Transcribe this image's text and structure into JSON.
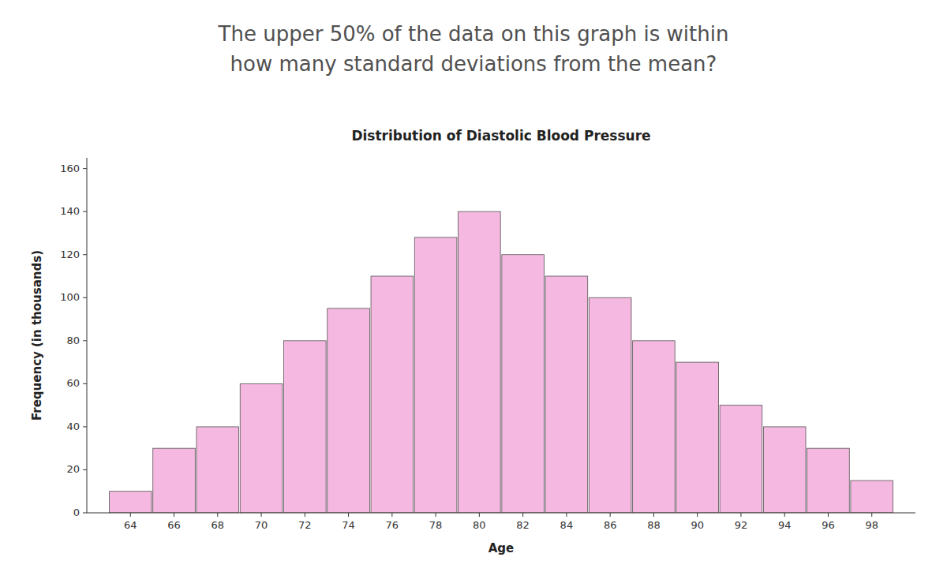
{
  "chart_data": {
    "type": "bar",
    "subtitle": [
      "The upper 50% of the data on this graph is within",
      "how many standard deviations from the mean?"
    ],
    "title": "Distribution of Diastolic Blood Pressure",
    "x_label": "Age",
    "y_label": "Frequency (in thousands)",
    "x": [
      64,
      66,
      68,
      70,
      72,
      74,
      76,
      78,
      80,
      82,
      84,
      86,
      88,
      90,
      92,
      94,
      96,
      98
    ],
    "values": [
      10,
      30,
      40,
      60,
      80,
      95,
      110,
      128,
      140,
      120,
      110,
      100,
      80,
      70,
      50,
      40,
      30,
      15
    ],
    "color": "#f5b8e0",
    "xlim": [
      62,
      100
    ],
    "xticks": [
      64,
      66,
      68,
      70,
      72,
      74,
      76,
      78,
      80,
      82,
      84,
      86,
      88,
      90,
      92,
      94,
      96,
      98
    ],
    "ylim": [
      0,
      165
    ],
    "yticks": [
      0,
      20,
      40,
      60,
      80,
      100,
      120,
      140,
      160
    ],
    "grid": false
  }
}
